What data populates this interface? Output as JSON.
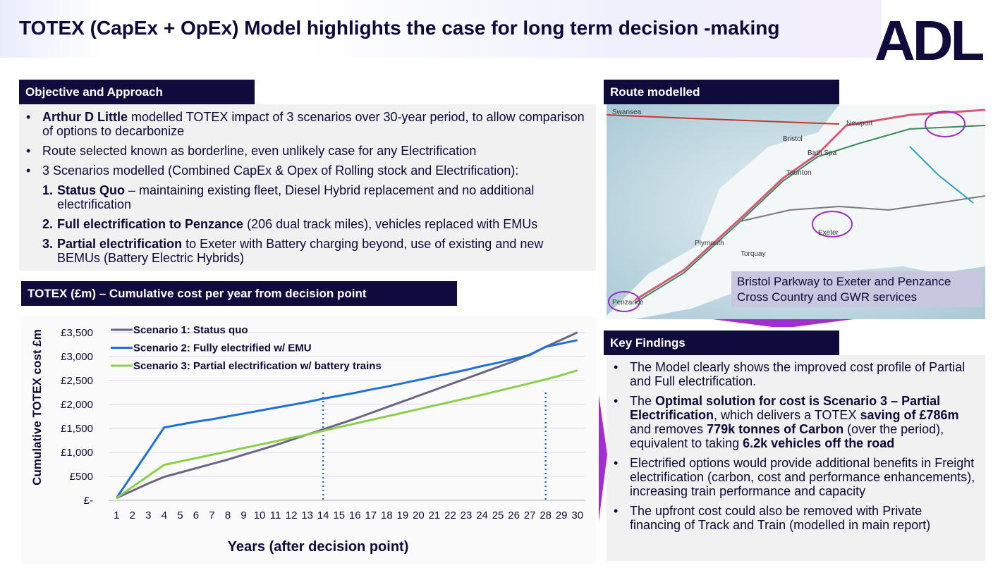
{
  "header": {
    "title": "TOTEX (CapEx + OpEx) Model highlights the case for long term decision -making",
    "logo": "ADL"
  },
  "objective": {
    "heading": "Objective and Approach",
    "bullets": [
      {
        "segments": [
          {
            "text": "Arthur D Little",
            "bold": true
          },
          {
            "text": " modelled TOTEX impact of 3 scenarios over 30-year period, to allow comparison of options to decarbonize"
          }
        ]
      },
      {
        "segments": [
          {
            "text": "Route selected known as borderline, even unlikely case for any Electrification"
          }
        ]
      },
      {
        "segments": [
          {
            "text": "3 Scenarios modelled (Combined CapEx & Opex of Rolling stock and Electrification):"
          }
        ]
      }
    ],
    "scenarios": [
      {
        "number": "1.",
        "segments": [
          {
            "text": "Status Quo",
            "bold": true
          },
          {
            "text": " – maintaining existing fleet, Diesel Hybrid replacement and no additional electrification"
          }
        ]
      },
      {
        "number": "2.",
        "segments": [
          {
            "text": "Full electrification to Penzance",
            "bold": true
          },
          {
            "text": " (206 dual track miles), vehicles replaced with EMUs"
          }
        ]
      },
      {
        "number": "3.",
        "segments": [
          {
            "text": "Partial electrification",
            "bold": true
          },
          {
            "text": " to Exeter with Battery charging beyond, use of existing and new BEMUs (Battery Electric Hybrids)"
          }
        ]
      }
    ]
  },
  "route": {
    "heading": "Route modelled",
    "caption": [
      "Bristol Parkway to Exeter and Penzance",
      "Cross Country and GWR services"
    ],
    "map_labels": [
      "Swansea",
      "Newport",
      "Bristol",
      "Bath Spa",
      "Taunton",
      "Exeter",
      "Plymouth",
      "Torquay",
      "Penzance"
    ]
  },
  "findings": {
    "heading": "Key Findings",
    "bullets": [
      {
        "segments": [
          {
            "text": "The Model clearly shows the improved cost profile of Partial and Full electrification."
          }
        ]
      },
      {
        "segments": [
          {
            "text": "The "
          },
          {
            "text": "Optimal solution for cost is Scenario 3 – Partial Electrification",
            "bold": true
          },
          {
            "text": ", which delivers a TOTEX "
          },
          {
            "text": "saving of £786m",
            "bold": true
          },
          {
            "text": " and removes "
          },
          {
            "text": "779k tonnes of Carbon",
            "bold": true
          },
          {
            "text": " (over the period), equivalent to taking "
          },
          {
            "text": "6.2k vehicles off the road",
            "bold": true
          }
        ]
      },
      {
        "segments": [
          {
            "text": "Electrified options would provide additional benefits in Freight electrification (carbon, cost and performance enhancements), increasing train performance and capacity"
          }
        ]
      },
      {
        "segments": [
          {
            "text": "The upfront cost could also be removed with Private financing of Track and Train (modelled in main report)"
          }
        ]
      }
    ]
  },
  "chart_data": {
    "type": "line",
    "title": "TOTEX (£m) – Cumulative cost per year from decision point",
    "x_label": "Years (after decision point)",
    "y_label": "Cumulative TOTEX cost £m",
    "x": [
      1,
      2,
      3,
      4,
      5,
      6,
      7,
      8,
      9,
      10,
      11,
      12,
      13,
      14,
      15,
      16,
      17,
      18,
      19,
      20,
      21,
      22,
      23,
      24,
      25,
      26,
      27,
      28,
      29,
      30
    ],
    "xlim": [
      0.5,
      30.5
    ],
    "ylim": [
      0,
      3600
    ],
    "yticks": [
      {
        "value": 0,
        "label": "£-"
      },
      {
        "value": 500,
        "label": "£500"
      },
      {
        "value": 1000,
        "label": "£1,000"
      },
      {
        "value": 1500,
        "label": "£1,500"
      },
      {
        "value": 2000,
        "label": "£2,000"
      },
      {
        "value": 2500,
        "label": "£2,500"
      },
      {
        "value": 3000,
        "label": "£3,000"
      },
      {
        "value": 3500,
        "label": "£3,500"
      }
    ],
    "grid": true,
    "legend": "top-left",
    "markers": [
      14,
      28
    ],
    "series": [
      {
        "name": "Scenario 1: Status quo",
        "color": "#6a6485",
        "values": [
          50,
          200,
          350,
          490,
          580,
          670,
          760,
          850,
          950,
          1050,
          1150,
          1260,
          1370,
          1480,
          1590,
          1700,
          1820,
          1940,
          2060,
          2180,
          2300,
          2420,
          2540,
          2660,
          2780,
          2900,
          3040,
          3200,
          3350,
          3500
        ]
      },
      {
        "name": "Scenario 2: Fully electrified w/ EMU",
        "color": "#1f6fd6",
        "values": [
          50,
          540,
          1030,
          1520,
          1580,
          1640,
          1690,
          1750,
          1810,
          1870,
          1930,
          1990,
          2050,
          2120,
          2180,
          2240,
          2310,
          2370,
          2440,
          2510,
          2580,
          2650,
          2720,
          2800,
          2870,
          2950,
          3030,
          3200,
          3270,
          3340
        ]
      },
      {
        "name": "Scenario 3: Partial electrification w/ battery trains",
        "color": "#8ccf4a",
        "values": [
          50,
          280,
          510,
          740,
          810,
          880,
          950,
          1020,
          1090,
          1160,
          1230,
          1300,
          1370,
          1450,
          1525,
          1600,
          1675,
          1750,
          1825,
          1900,
          1975,
          2050,
          2125,
          2200,
          2280,
          2360,
          2440,
          2520,
          2610,
          2710
        ]
      }
    ]
  }
}
